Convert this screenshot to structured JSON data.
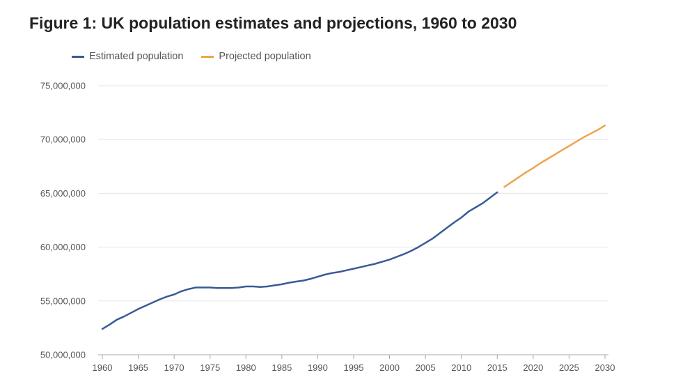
{
  "title": "Figure 1: UK population estimates and projections, 1960 to 2030",
  "colors": {
    "estimated": "#3a5a96",
    "projected": "#eea44f",
    "grid": "#e5e5e5",
    "axis": "#a8a8a8"
  },
  "chart_data": {
    "type": "line",
    "title": "Figure 1: UK population estimates and projections, 1960 to 2030",
    "xlabel": "",
    "ylabel": "",
    "xlim": [
      1960,
      2030
    ],
    "ylim": [
      50000000,
      75000000
    ],
    "x_ticks": [
      1960,
      1965,
      1970,
      1975,
      1980,
      1985,
      1990,
      1995,
      2000,
      2005,
      2010,
      2015,
      2020,
      2025,
      2030
    ],
    "y_ticks": [
      50000000,
      55000000,
      60000000,
      65000000,
      70000000,
      75000000
    ],
    "y_tick_labels": [
      "50,000,000",
      "55,000,000",
      "60,000,000",
      "65,000,000",
      "70,000,000",
      "75,000,000"
    ],
    "grid": true,
    "legend_position": "top-left",
    "series": [
      {
        "name": "Estimated population",
        "color": "#3a5a96",
        "x": [
          1960,
          1961,
          1962,
          1963,
          1964,
          1965,
          1966,
          1967,
          1968,
          1969,
          1970,
          1971,
          1972,
          1973,
          1974,
          1975,
          1976,
          1977,
          1978,
          1979,
          1980,
          1981,
          1982,
          1983,
          1984,
          1985,
          1986,
          1987,
          1988,
          1989,
          1990,
          1991,
          1992,
          1993,
          1994,
          1995,
          1996,
          1997,
          1998,
          1999,
          2000,
          2001,
          2002,
          2003,
          2004,
          2005,
          2006,
          2007,
          2008,
          2009,
          2010,
          2011,
          2012,
          2013,
          2014,
          2015
        ],
        "values": [
          52400000,
          52800000,
          53250000,
          53550000,
          53900000,
          54250000,
          54550000,
          54850000,
          55150000,
          55400000,
          55600000,
          55900000,
          56100000,
          56250000,
          56250000,
          56250000,
          56200000,
          56200000,
          56200000,
          56250000,
          56350000,
          56350000,
          56300000,
          56350000,
          56450000,
          56550000,
          56700000,
          56800000,
          56900000,
          57050000,
          57250000,
          57450000,
          57600000,
          57700000,
          57850000,
          58000000,
          58150000,
          58300000,
          58450000,
          58650000,
          58850000,
          59100000,
          59350000,
          59650000,
          60000000,
          60400000,
          60800000,
          61300000,
          61800000,
          62300000,
          62750000,
          63300000,
          63700000,
          64100000,
          64600000,
          65100000
        ]
      },
      {
        "name": "Projected population",
        "color": "#eea44f",
        "x": [
          2016,
          2017,
          2018,
          2019,
          2020,
          2021,
          2022,
          2023,
          2024,
          2025,
          2026,
          2027,
          2028,
          2029,
          2030
        ],
        "values": [
          65600000,
          66050000,
          66500000,
          66950000,
          67350000,
          67800000,
          68200000,
          68600000,
          69000000,
          69400000,
          69800000,
          70200000,
          70550000,
          70900000,
          71300000
        ]
      }
    ]
  }
}
